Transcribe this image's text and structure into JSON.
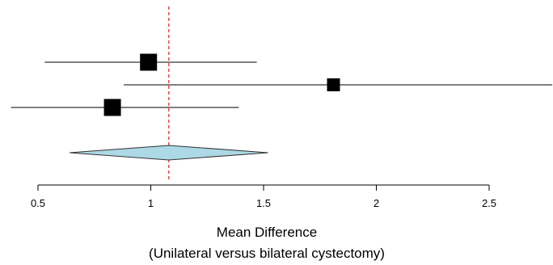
{
  "chart_data": {
    "type": "forest",
    "title": "",
    "xlabel_line1": "Mean Difference",
    "xlabel_line2": "(Unilateral versus bilateral cystectomy)",
    "ylabel": "",
    "xlim": [
      0.38,
      2.78
    ],
    "ticks": [
      0.5,
      1,
      1.5,
      2,
      2.5
    ],
    "tick_labels": [
      "0.5",
      "1",
      "1.5",
      "2",
      "2.5"
    ],
    "reference_line": 1.08,
    "reference_color": "#e02020",
    "studies": [
      {
        "estimate": 0.99,
        "lower": 0.53,
        "upper": 1.47,
        "weight": "large"
      },
      {
        "estimate": 1.81,
        "lower": 0.88,
        "upper": 2.78,
        "weight": "small"
      },
      {
        "estimate": 0.83,
        "lower": 0.38,
        "upper": 1.39,
        "weight": "large"
      }
    ],
    "pooled": {
      "estimate": 1.08,
      "lower": 0.64,
      "upper": 1.52,
      "fill": "#add8e6"
    }
  }
}
